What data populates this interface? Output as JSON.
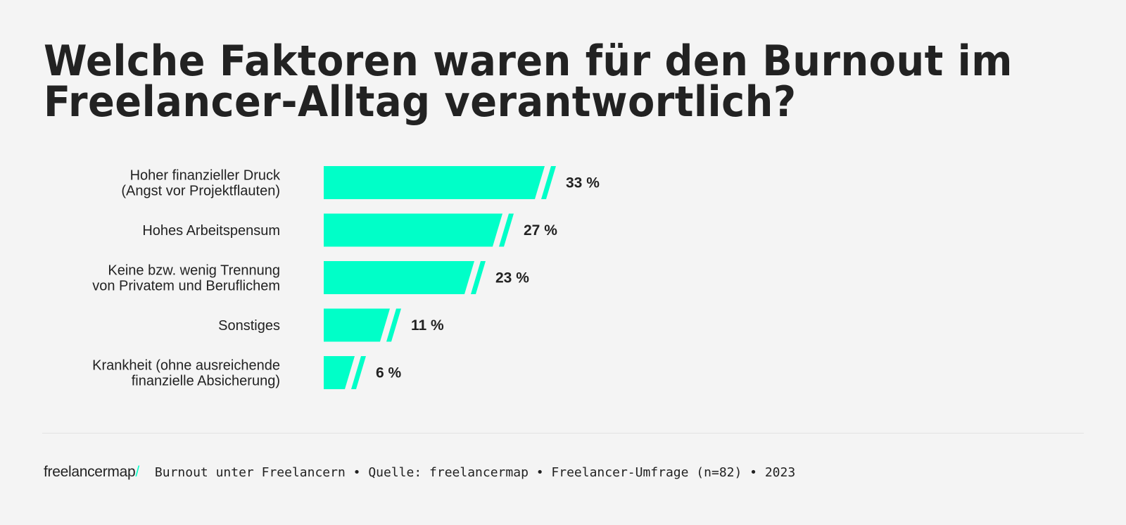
{
  "title_lines": [
    "Welche Faktoren waren für den Burnout im",
    "Freelancer-Alltag verantwortlich?"
  ],
  "chart_data": {
    "type": "bar",
    "orientation": "horizontal",
    "title": "Welche Faktoren waren für den Burnout im Freelancer-Alltag verantwortlich?",
    "categories": [
      [
        "Hoher finanzieller Druck",
        "(Angst vor Projektflauten)"
      ],
      [
        "Hohes Arbeitspensum"
      ],
      [
        "Keine bzw. wenig Trennung",
        "von Privatem und Beruflichem"
      ],
      [
        "Sonstiges"
      ],
      [
        "Krankheit (ohne ausreichende",
        "finanzielle Absicherung)"
      ]
    ],
    "values": [
      33,
      27,
      23,
      11,
      6
    ],
    "value_labels": [
      "33 %",
      "27 %",
      "23 %",
      "11 %",
      "6 %"
    ],
    "unit": "%",
    "bar_color": "#00ffc8",
    "grid": false
  },
  "footer": {
    "logo_text": "freelancermap",
    "logo_slash": "/",
    "source": "Burnout unter Freelancern • Quelle: freelancermap • Freelancer-Umfrage (n=82) • 2023"
  }
}
